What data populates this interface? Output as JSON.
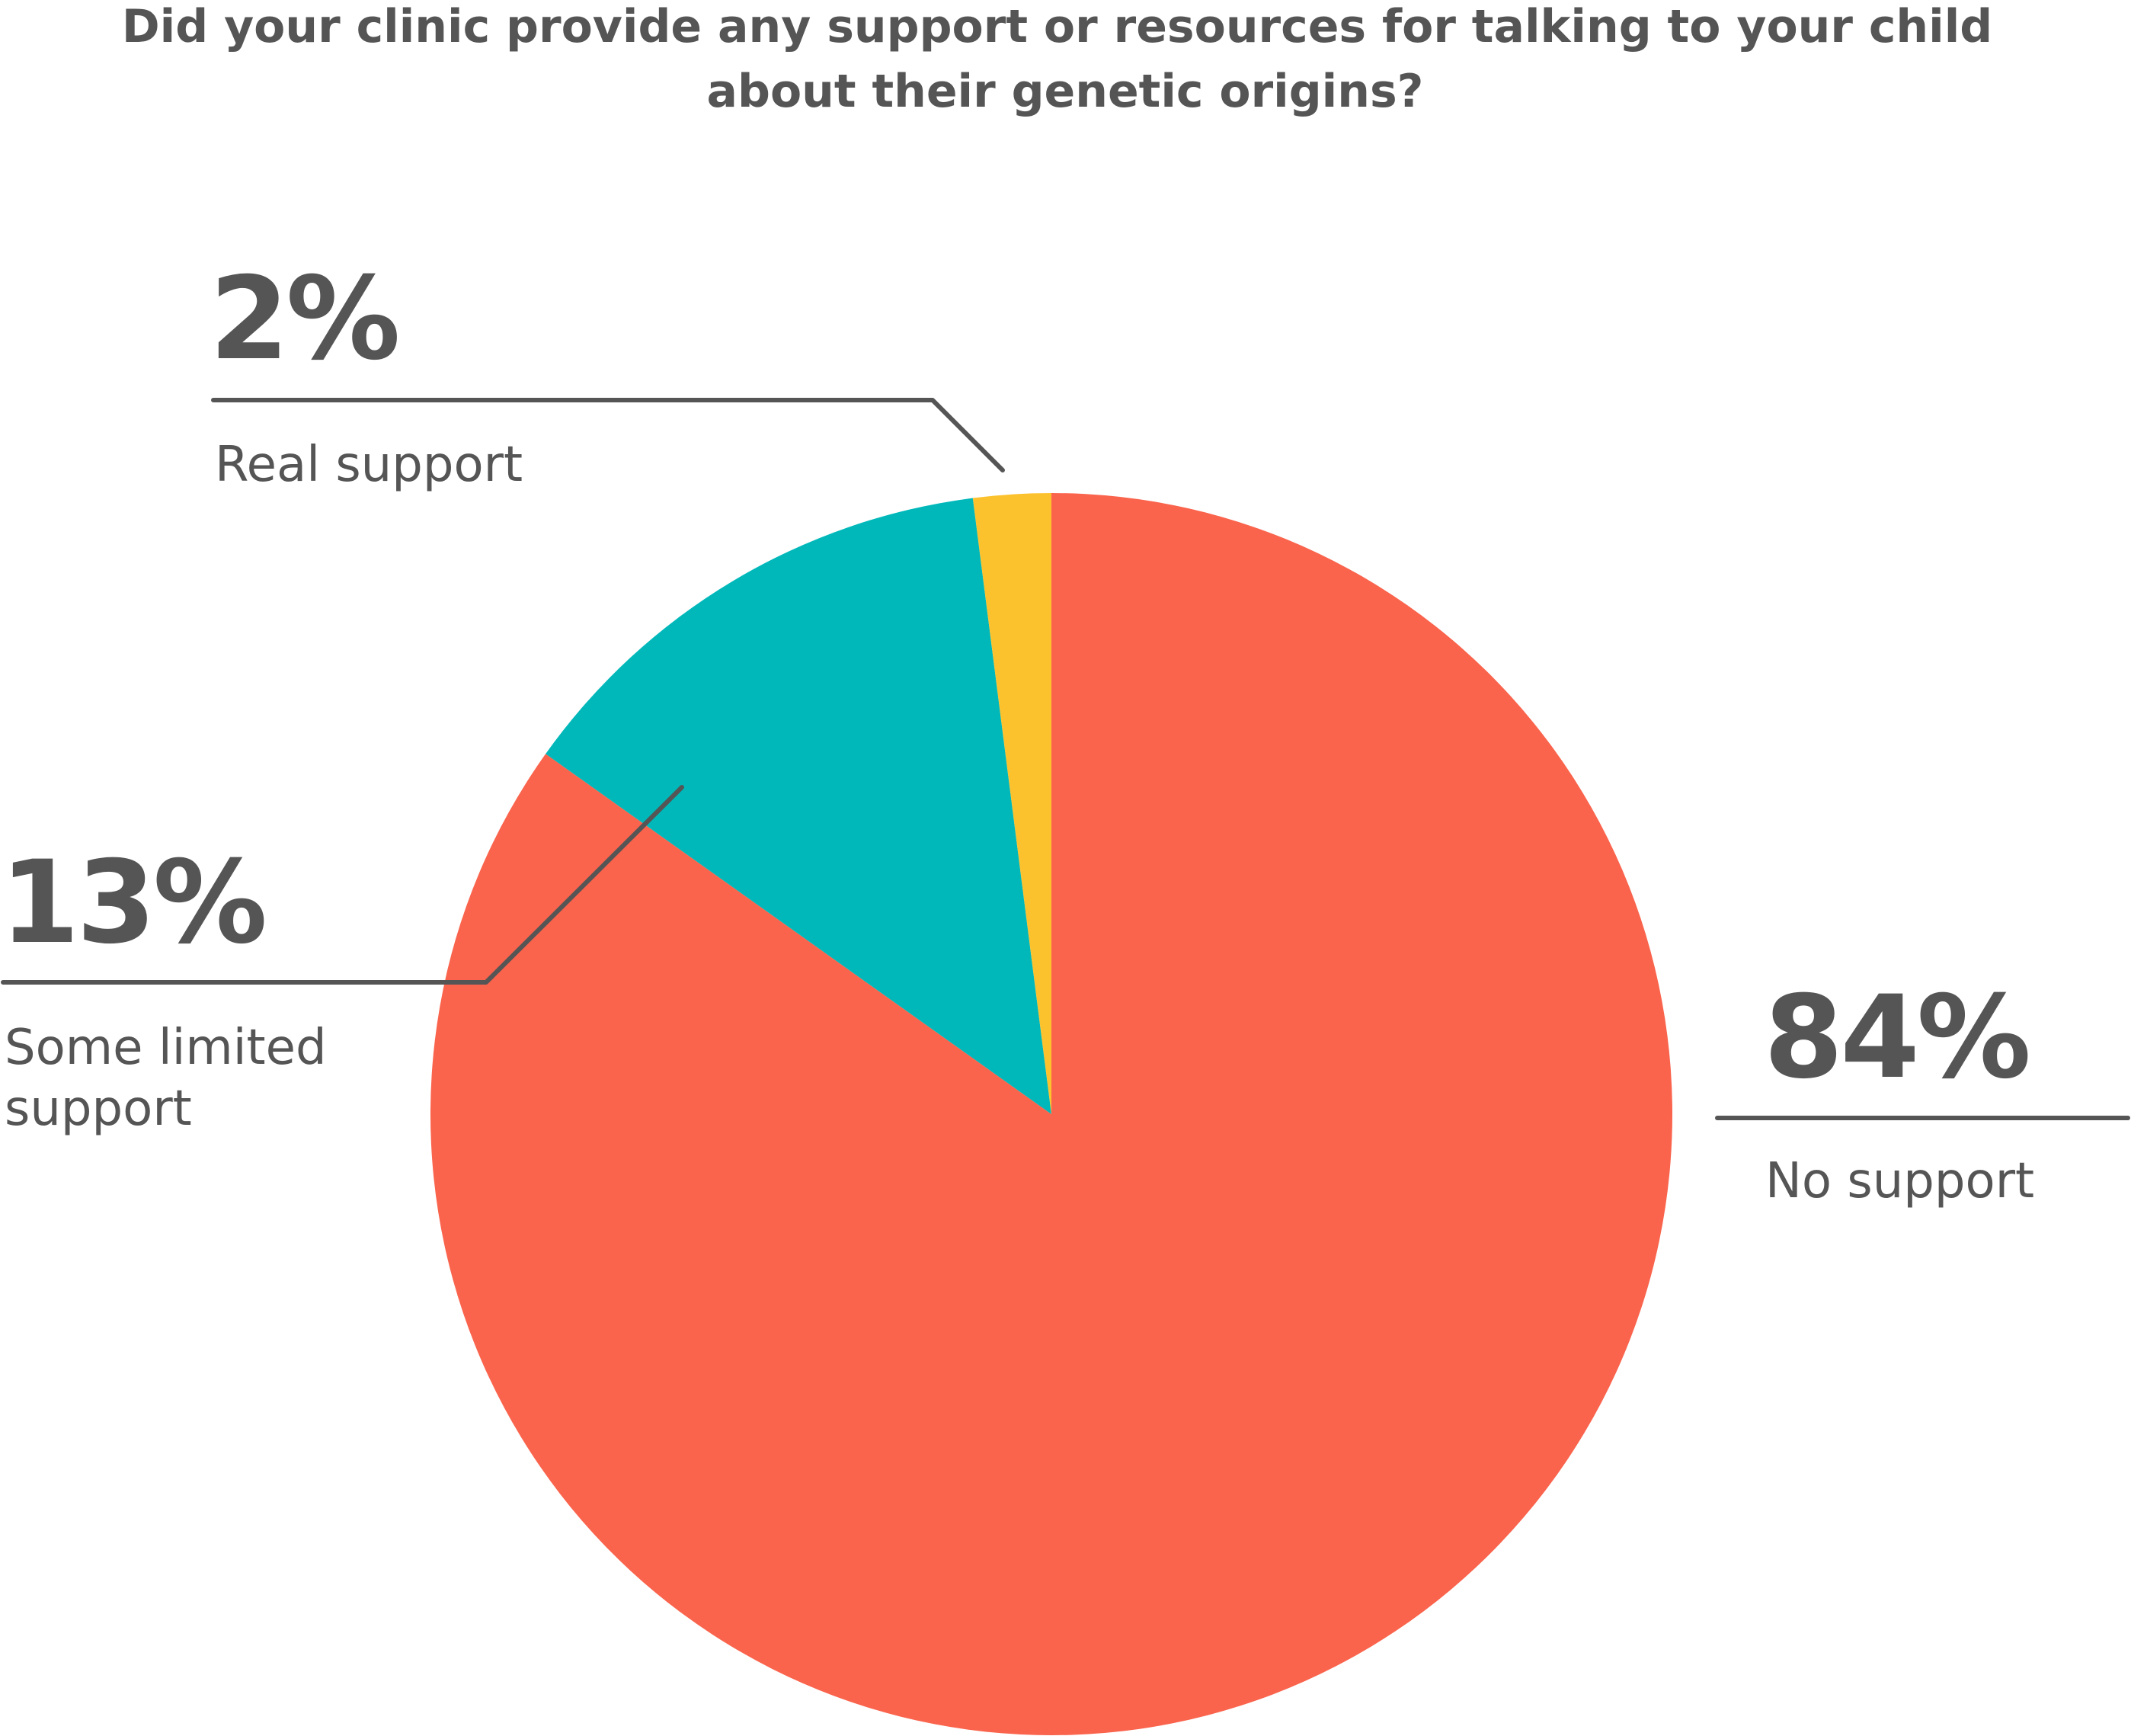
{
  "chart_data": {
    "type": "pie",
    "title": "Did your clinic provide any support or resources for talking to your child about their genetic origins?",
    "title_lines": [
      "Did your clinic provide any support or resources for talking to your child",
      "about their genetic origins?"
    ],
    "slices": [
      {
        "label": "No support",
        "label_lines": [
          "No support"
        ],
        "value": 84,
        "value_label": "84%",
        "color": "#fa634c"
      },
      {
        "label": "Some limited support",
        "label_lines": [
          "Some limited",
          "support"
        ],
        "value": 13,
        "value_label": "13%",
        "color": "#00b8ba"
      },
      {
        "label": "Real support",
        "label_lines": [
          "Real support"
        ],
        "value": 2,
        "value_label": "2%",
        "color": "#fcc22e"
      }
    ],
    "legend": "none"
  },
  "colors": {
    "text": "#555555",
    "leader": "#555555",
    "background": "#ffffff"
  }
}
